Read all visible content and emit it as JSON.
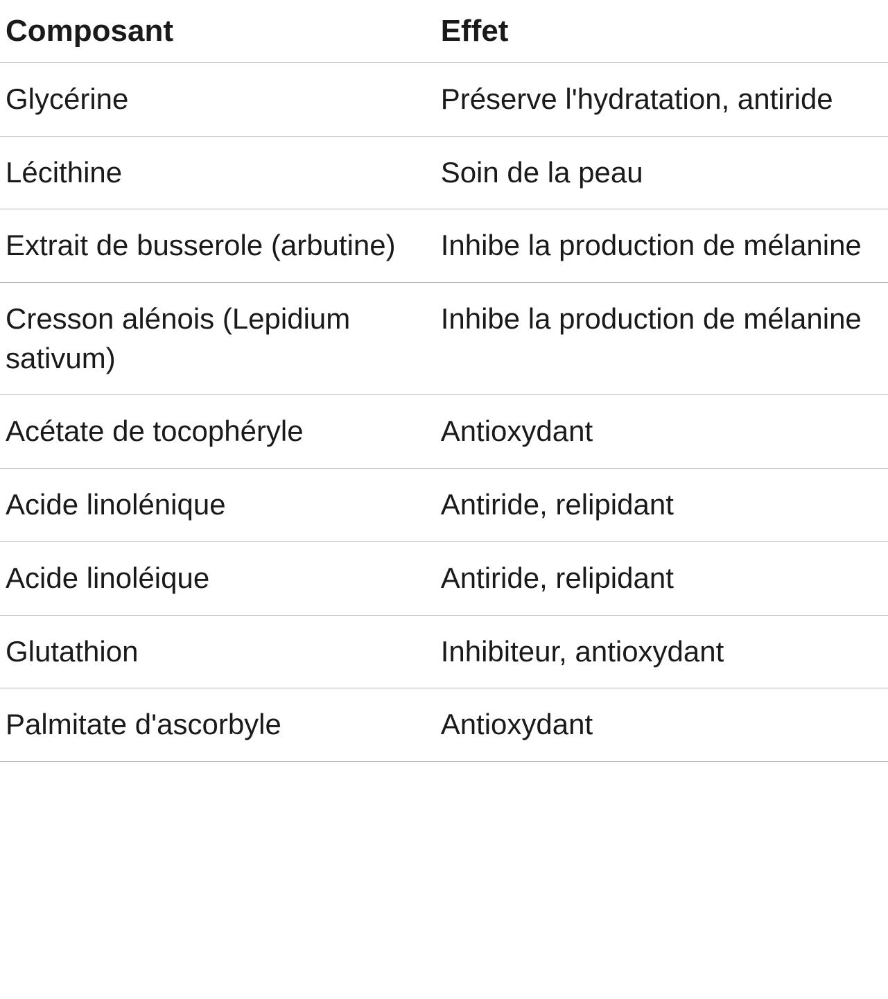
{
  "table": {
    "type": "table",
    "background_color": "#ffffff",
    "text_color": "#1a1a1a",
    "border_color": "#b8b8b8",
    "header_fontsize": 44,
    "header_fontweight": 700,
    "body_fontsize": 42,
    "body_fontweight": 400,
    "columns": [
      {
        "label": "Composant",
        "width": "49%"
      },
      {
        "label": "Effet",
        "width": "51%"
      }
    ],
    "rows": [
      {
        "composant": "Glycérine",
        "effet": "Préserve l'hydrata­tion, antiride"
      },
      {
        "composant": "Lécithine",
        "effet": "Soin de la peau"
      },
      {
        "composant": "Extrait de busserole (arbutine)",
        "effet": "Inhibe la production de mélanine"
      },
      {
        "composant": "Cresson alénois (Lepidium sativum)",
        "effet": "Inhibe la production de mélanine"
      },
      {
        "composant": "Acétate de tocophéryle",
        "effet": "Antioxydant"
      },
      {
        "composant": "Acide linolénique",
        "effet": "Antiride, relipidant"
      },
      {
        "composant": "Acide linoléique",
        "effet": "Antiride, relipidant"
      },
      {
        "composant": "Glutathion",
        "effet": "Inhibiteur, antioxy­dant"
      },
      {
        "composant": "Palmitate d'ascorbyle",
        "effet": "Antioxydant"
      }
    ]
  }
}
